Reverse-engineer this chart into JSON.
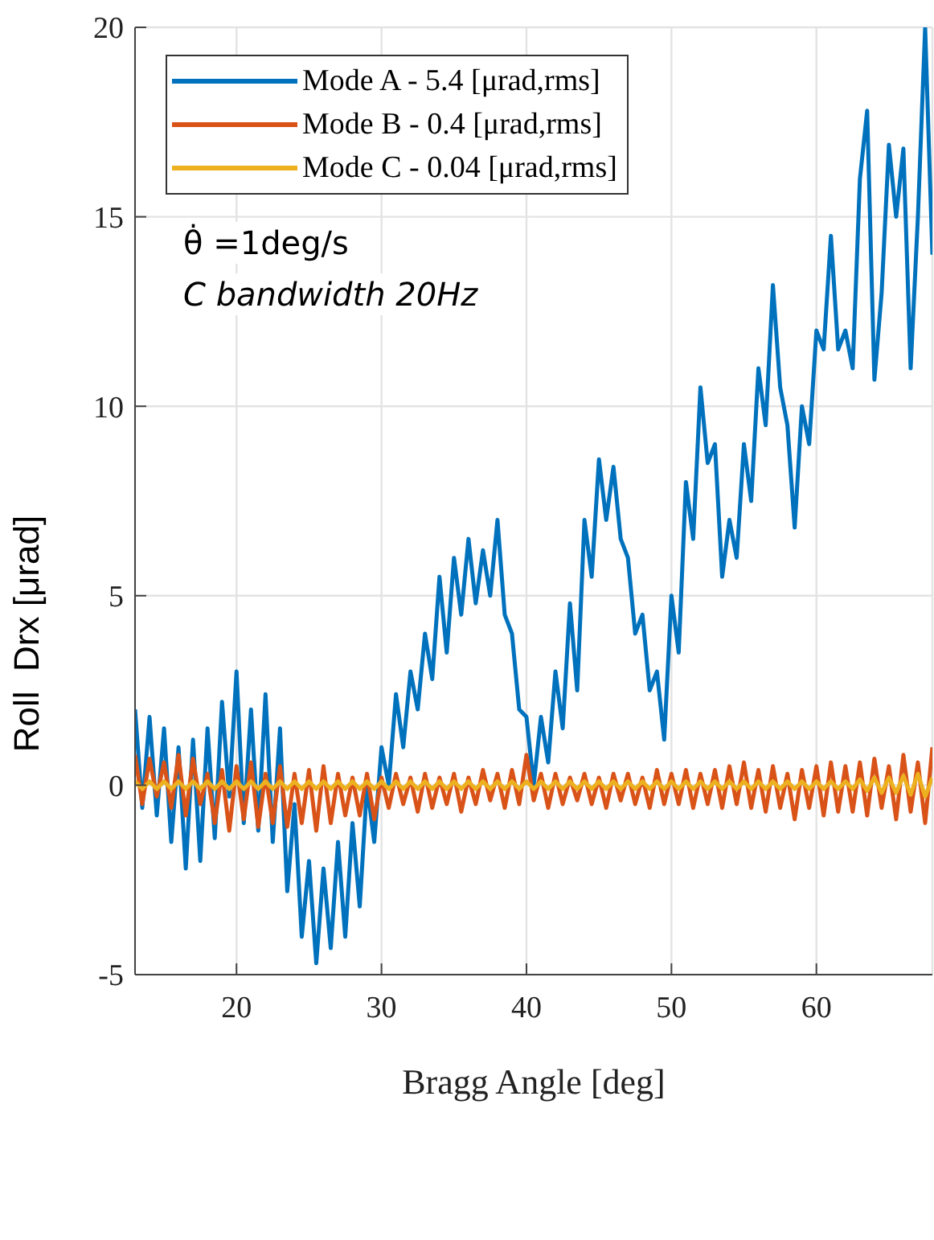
{
  "chart_data": {
    "type": "line",
    "xlabel": "Bragg Angle [deg]",
    "ylabel": "Roll  Drx [μrad]",
    "annotations": [
      "θ̇ =1deg/s",
      "C bandwidth 20Hz"
    ],
    "x": [
      13,
      13.5,
      14,
      14.5,
      15,
      15.5,
      16,
      16.5,
      17,
      17.5,
      18,
      18.5,
      19,
      19.5,
      20,
      20.5,
      21,
      21.5,
      22,
      22.5,
      23,
      23.5,
      24,
      24.5,
      25,
      25.5,
      26,
      26.5,
      27,
      27.5,
      28,
      28.5,
      29,
      29.5,
      30,
      30.5,
      31,
      31.5,
      32,
      32.5,
      33,
      33.5,
      34,
      34.5,
      35,
      35.5,
      36,
      36.5,
      37,
      37.5,
      38,
      38.5,
      39,
      39.5,
      40,
      40.5,
      41,
      41.5,
      42,
      42.5,
      43,
      43.5,
      44,
      44.5,
      45,
      45.5,
      46,
      46.5,
      47,
      47.5,
      48,
      48.5,
      49,
      49.5,
      50,
      50.5,
      51,
      51.5,
      52,
      52.5,
      53,
      53.5,
      54,
      54.5,
      55,
      55.5,
      56,
      56.5,
      57,
      57.5,
      58,
      58.5,
      59,
      59.5,
      60,
      60.5,
      61,
      61.5,
      62,
      62.5,
      63,
      63.5,
      64,
      64.5,
      65,
      65.5,
      66,
      66.5,
      67,
      67.5,
      68
    ],
    "series": [
      {
        "name": "Mode A - 5.4 [μrad,rms]",
        "color": "#0072bd",
        "values": [
          2.0,
          -0.6,
          1.8,
          -0.8,
          1.5,
          -1.5,
          1.0,
          -2.2,
          1.2,
          -2.0,
          1.5,
          -1.4,
          2.2,
          -0.3,
          3.0,
          -1.0,
          2.0,
          -1.2,
          2.4,
          -1.5,
          1.5,
          -2.8,
          -0.5,
          -4.0,
          -2.0,
          -4.7,
          -2.2,
          -4.3,
          -1.5,
          -4.0,
          -1.0,
          -3.2,
          0.0,
          -1.5,
          1.0,
          0.0,
          2.4,
          1.0,
          3.0,
          2.0,
          4.0,
          2.8,
          5.5,
          3.5,
          6.0,
          4.5,
          6.5,
          4.8,
          6.2,
          5.0,
          7.0,
          4.5,
          4.0,
          2.0,
          1.8,
          0.0,
          1.8,
          0.6,
          3.0,
          1.5,
          4.8,
          2.5,
          7.0,
          5.5,
          8.6,
          7.0,
          8.4,
          6.5,
          6.0,
          4.0,
          4.5,
          2.5,
          3.0,
          1.2,
          5.0,
          3.5,
          8.0,
          6.5,
          10.5,
          8.5,
          9.0,
          5.5,
          7.0,
          6.0,
          9.0,
          7.5,
          11.0,
          9.5,
          13.2,
          10.5,
          9.5,
          6.8,
          10.0,
          9.0,
          12.0,
          11.5,
          14.5,
          11.5,
          12.0,
          11.0,
          16.0,
          17.8,
          10.7,
          13.0,
          16.9,
          15.0,
          16.8,
          11.0,
          15.0,
          20.0,
          14.0
        ]
      },
      {
        "name": "Mode B - 0.4 [μrad,rms]",
        "color": "#d95319",
        "values": [
          0.8,
          -0.5,
          0.7,
          -0.3,
          0.6,
          -0.6,
          0.8,
          -0.8,
          0.7,
          -0.5,
          0.3,
          -1.0,
          0.4,
          -1.2,
          0.5,
          -0.9,
          0.6,
          -1.1,
          0.3,
          -1.0,
          0.5,
          -1.1,
          0.3,
          -1.0,
          0.4,
          -1.2,
          0.5,
          -1.0,
          0.3,
          -0.8,
          0.2,
          -0.8,
          0.3,
          -0.9,
          0.2,
          -0.6,
          0.3,
          -0.5,
          0.2,
          -0.7,
          0.3,
          -0.6,
          0.2,
          -0.5,
          0.3,
          -0.7,
          0.2,
          -0.5,
          0.4,
          -0.4,
          0.3,
          -0.6,
          0.4,
          -0.5,
          0.8,
          -0.4,
          0.3,
          -0.6,
          0.3,
          -0.5,
          0.2,
          -0.4,
          0.3,
          -0.5,
          0.2,
          -0.6,
          0.3,
          -0.4,
          0.3,
          -0.5,
          0.2,
          -0.6,
          0.4,
          -0.5,
          0.3,
          -0.5,
          0.4,
          -0.6,
          0.3,
          -0.5,
          0.4,
          -0.6,
          0.5,
          -0.5,
          0.6,
          -0.6,
          0.4,
          -0.7,
          0.5,
          -0.6,
          0.3,
          -0.9,
          0.4,
          -0.6,
          0.5,
          -0.8,
          0.6,
          -0.7,
          0.5,
          -0.7,
          0.6,
          -0.8,
          0.7,
          -0.6,
          0.5,
          -0.9,
          0.8,
          -0.7,
          0.6,
          -1.0,
          1.0
        ]
      },
      {
        "name": "Mode C - 0.04 [μrad,rms]",
        "color": "#edb120",
        "values": [
          0.1,
          -0.1,
          0.1,
          -0.1,
          0.1,
          -0.1,
          0.1,
          -0.1,
          0.1,
          -0.1,
          0.1,
          -0.1,
          0.1,
          -0.1,
          0.1,
          -0.1,
          0.1,
          -0.1,
          0.1,
          -0.1,
          0.1,
          -0.1,
          0.1,
          -0.1,
          0.1,
          -0.1,
          0.1,
          -0.1,
          0.1,
          -0.1,
          0.1,
          -0.1,
          0.1,
          -0.1,
          0.1,
          -0.1,
          0.1,
          -0.1,
          0.1,
          -0.1,
          0.1,
          -0.1,
          0.1,
          -0.1,
          0.1,
          -0.1,
          0.1,
          -0.1,
          0.1,
          -0.1,
          0.1,
          -0.1,
          0.1,
          -0.1,
          0.1,
          -0.1,
          0.1,
          -0.1,
          0.1,
          -0.1,
          0.1,
          -0.1,
          0.1,
          -0.1,
          0.1,
          -0.1,
          0.1,
          -0.1,
          0.1,
          -0.1,
          0.1,
          -0.1,
          0.1,
          -0.1,
          0.1,
          -0.1,
          0.1,
          -0.1,
          0.1,
          -0.1,
          0.1,
          -0.1,
          0.1,
          -0.1,
          0.1,
          -0.1,
          0.1,
          -0.1,
          0.1,
          -0.1,
          0.1,
          -0.1,
          0.1,
          -0.1,
          0.1,
          -0.1,
          0.1,
          -0.1,
          0.1,
          -0.1,
          0.15,
          -0.15,
          0.2,
          -0.2,
          0.2,
          -0.2,
          0.25,
          -0.25,
          0.3,
          -0.3,
          0.2
        ]
      }
    ],
    "xlim": [
      13,
      68
    ],
    "ylim": [
      -5,
      20
    ],
    "xticks": [
      20,
      30,
      40,
      50,
      60
    ],
    "yticks": [
      -5,
      0,
      5,
      10,
      15,
      20
    ],
    "grid": true,
    "legend": "top left",
    "marker": "none",
    "line_style": "solid"
  }
}
